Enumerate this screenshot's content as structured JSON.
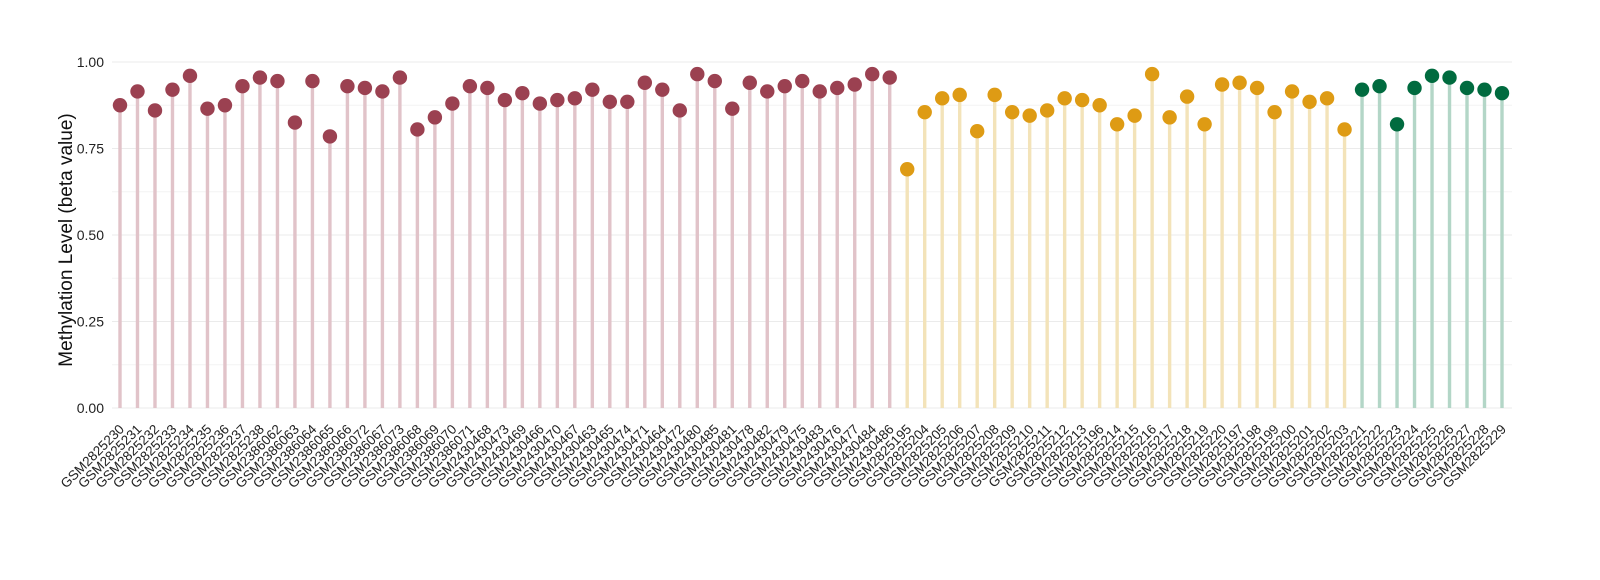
{
  "chart_data": {
    "type": "lollipop",
    "title": "",
    "xlabel": "",
    "ylabel": "Methylation Level (beta value)",
    "ylim": [
      0,
      1
    ],
    "yticks": [
      0,
      0.25,
      0.5,
      0.75,
      1.0
    ],
    "ytick_labels": [
      "0.00",
      "0.25",
      "0.50",
      "0.75",
      "1.00"
    ],
    "grid": true,
    "legend": "none",
    "groups": [
      {
        "color": "#9b4151",
        "stem_color": "#e1c3c9"
      },
      {
        "color": "#de9b14",
        "stem_color": "#f3e3b9"
      },
      {
        "color": "#006b3f",
        "stem_color": "#b3d6c7"
      }
    ],
    "points": [
      {
        "label": "GSM2825230",
        "value": 0.875,
        "group": 0
      },
      {
        "label": "GSM2825231",
        "value": 0.915,
        "group": 0
      },
      {
        "label": "GSM2825232",
        "value": 0.86,
        "group": 0
      },
      {
        "label": "GSM2825233",
        "value": 0.92,
        "group": 0
      },
      {
        "label": "GSM2825234",
        "value": 0.96,
        "group": 0
      },
      {
        "label": "GSM2825235",
        "value": 0.865,
        "group": 0
      },
      {
        "label": "GSM2825236",
        "value": 0.875,
        "group": 0
      },
      {
        "label": "GSM2825237",
        "value": 0.93,
        "group": 0
      },
      {
        "label": "GSM2825238",
        "value": 0.955,
        "group": 0
      },
      {
        "label": "GSM2386062",
        "value": 0.945,
        "group": 0
      },
      {
        "label": "GSM2386063",
        "value": 0.825,
        "group": 0
      },
      {
        "label": "GSM2386064",
        "value": 0.945,
        "group": 0
      },
      {
        "label": "GSM2386065",
        "value": 0.785,
        "group": 0
      },
      {
        "label": "GSM2386066",
        "value": 0.93,
        "group": 0
      },
      {
        "label": "GSM2386072",
        "value": 0.925,
        "group": 0
      },
      {
        "label": "GSM2386067",
        "value": 0.915,
        "group": 0
      },
      {
        "label": "GSM2386073",
        "value": 0.955,
        "group": 0
      },
      {
        "label": "GSM2386068",
        "value": 0.805,
        "group": 0
      },
      {
        "label": "GSM2386069",
        "value": 0.84,
        "group": 0
      },
      {
        "label": "GSM2386070",
        "value": 0.88,
        "group": 0
      },
      {
        "label": "GSM2386071",
        "value": 0.93,
        "group": 0
      },
      {
        "label": "GSM2430468",
        "value": 0.925,
        "group": 0
      },
      {
        "label": "GSM2430473",
        "value": 0.89,
        "group": 0
      },
      {
        "label": "GSM2430469",
        "value": 0.91,
        "group": 0
      },
      {
        "label": "GSM2430466",
        "value": 0.88,
        "group": 0
      },
      {
        "label": "GSM2430470",
        "value": 0.89,
        "group": 0
      },
      {
        "label": "GSM2430467",
        "value": 0.895,
        "group": 0
      },
      {
        "label": "GSM2430463",
        "value": 0.92,
        "group": 0
      },
      {
        "label": "GSM2430465",
        "value": 0.885,
        "group": 0
      },
      {
        "label": "GSM2430474",
        "value": 0.885,
        "group": 0
      },
      {
        "label": "GSM2430471",
        "value": 0.94,
        "group": 0
      },
      {
        "label": "GSM2430464",
        "value": 0.92,
        "group": 0
      },
      {
        "label": "GSM2430472",
        "value": 0.86,
        "group": 0
      },
      {
        "label": "GSM2430480",
        "value": 0.965,
        "group": 0
      },
      {
        "label": "GSM2430485",
        "value": 0.945,
        "group": 0
      },
      {
        "label": "GSM2430481",
        "value": 0.865,
        "group": 0
      },
      {
        "label": "GSM2430478",
        "value": 0.94,
        "group": 0
      },
      {
        "label": "GSM2430482",
        "value": 0.915,
        "group": 0
      },
      {
        "label": "GSM2430479",
        "value": 0.93,
        "group": 0
      },
      {
        "label": "GSM2430475",
        "value": 0.945,
        "group": 0
      },
      {
        "label": "GSM2430483",
        "value": 0.915,
        "group": 0
      },
      {
        "label": "GSM2430476",
        "value": 0.925,
        "group": 0
      },
      {
        "label": "GSM2430477",
        "value": 0.935,
        "group": 0
      },
      {
        "label": "GSM2430484",
        "value": 0.965,
        "group": 0
      },
      {
        "label": "GSM2430486",
        "value": 0.955,
        "group": 0
      },
      {
        "label": "GSM2825195",
        "value": 0.69,
        "group": 1
      },
      {
        "label": "GSM2825204",
        "value": 0.855,
        "group": 1
      },
      {
        "label": "GSM2825205",
        "value": 0.895,
        "group": 1
      },
      {
        "label": "GSM2825206",
        "value": 0.905,
        "group": 1
      },
      {
        "label": "GSM2825207",
        "value": 0.8,
        "group": 1
      },
      {
        "label": "GSM2825208",
        "value": 0.905,
        "group": 1
      },
      {
        "label": "GSM2825209",
        "value": 0.855,
        "group": 1
      },
      {
        "label": "GSM2825210",
        "value": 0.845,
        "group": 1
      },
      {
        "label": "GSM2825211",
        "value": 0.86,
        "group": 1
      },
      {
        "label": "GSM2825212",
        "value": 0.895,
        "group": 1
      },
      {
        "label": "GSM2825213",
        "value": 0.89,
        "group": 1
      },
      {
        "label": "GSM2825196",
        "value": 0.875,
        "group": 1
      },
      {
        "label": "GSM2825214",
        "value": 0.82,
        "group": 1
      },
      {
        "label": "GSM2825215",
        "value": 0.845,
        "group": 1
      },
      {
        "label": "GSM2825216",
        "value": 0.965,
        "group": 1
      },
      {
        "label": "GSM2825217",
        "value": 0.84,
        "group": 1
      },
      {
        "label": "GSM2825218",
        "value": 0.9,
        "group": 1
      },
      {
        "label": "GSM2825219",
        "value": 0.82,
        "group": 1
      },
      {
        "label": "GSM2825220",
        "value": 0.935,
        "group": 1
      },
      {
        "label": "GSM2825197",
        "value": 0.94,
        "group": 1
      },
      {
        "label": "GSM2825198",
        "value": 0.925,
        "group": 1
      },
      {
        "label": "GSM2825199",
        "value": 0.855,
        "group": 1
      },
      {
        "label": "GSM2825200",
        "value": 0.915,
        "group": 1
      },
      {
        "label": "GSM2825201",
        "value": 0.885,
        "group": 1
      },
      {
        "label": "GSM2825202",
        "value": 0.895,
        "group": 1
      },
      {
        "label": "GSM2825203",
        "value": 0.805,
        "group": 1
      },
      {
        "label": "GSM2825221",
        "value": 0.92,
        "group": 2
      },
      {
        "label": "GSM2825222",
        "value": 0.93,
        "group": 2
      },
      {
        "label": "GSM2825223",
        "value": 0.82,
        "group": 2
      },
      {
        "label": "GSM2825224",
        "value": 0.925,
        "group": 2
      },
      {
        "label": "GSM2825225",
        "value": 0.96,
        "group": 2
      },
      {
        "label": "GSM2825226",
        "value": 0.955,
        "group": 2
      },
      {
        "label": "GSM2825227",
        "value": 0.925,
        "group": 2
      },
      {
        "label": "GSM2825228",
        "value": 0.92,
        "group": 2
      },
      {
        "label": "GSM2825229",
        "value": 0.91,
        "group": 2
      }
    ]
  }
}
